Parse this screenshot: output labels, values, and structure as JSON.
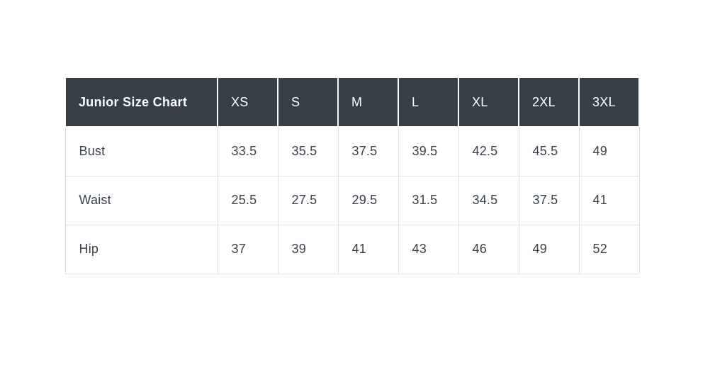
{
  "page": {
    "background_color": "#ffffff"
  },
  "table": {
    "header": {
      "title": "Junior Size Chart",
      "sizes": [
        "XS",
        "S",
        "M",
        "L",
        "XL",
        "2XL",
        "3XL"
      ]
    },
    "rows": [
      {
        "label": "Bust",
        "values": [
          "33.5",
          "35.5",
          "37.5",
          "39.5",
          "42.5",
          "45.5",
          "49"
        ]
      },
      {
        "label": "Waist",
        "values": [
          "25.5",
          "27.5",
          "29.5",
          "31.5",
          "34.5",
          "37.5",
          "41"
        ]
      },
      {
        "label": "Hip",
        "values": [
          "37",
          "39",
          "41",
          "43",
          "46",
          "49",
          "52"
        ]
      }
    ],
    "colors": {
      "header_background": "#363e46",
      "header_text": "#ffffff",
      "body_text": "#39424c",
      "border": "#e2e2e2"
    }
  },
  "chart_data": {
    "type": "table",
    "title": "Junior Size Chart",
    "columns": [
      "Junior Size Chart",
      "XS",
      "S",
      "M",
      "L",
      "XL",
      "2XL",
      "3XL"
    ],
    "rows": [
      [
        "Bust",
        33.5,
        35.5,
        37.5,
        39.5,
        42.5,
        45.5,
        49
      ],
      [
        "Waist",
        25.5,
        27.5,
        29.5,
        31.5,
        34.5,
        37.5,
        41
      ],
      [
        "Hip",
        37,
        39,
        41,
        43,
        46,
        49,
        52
      ]
    ],
    "notes": "Junior apparel size chart; body measurements in inches per size"
  }
}
